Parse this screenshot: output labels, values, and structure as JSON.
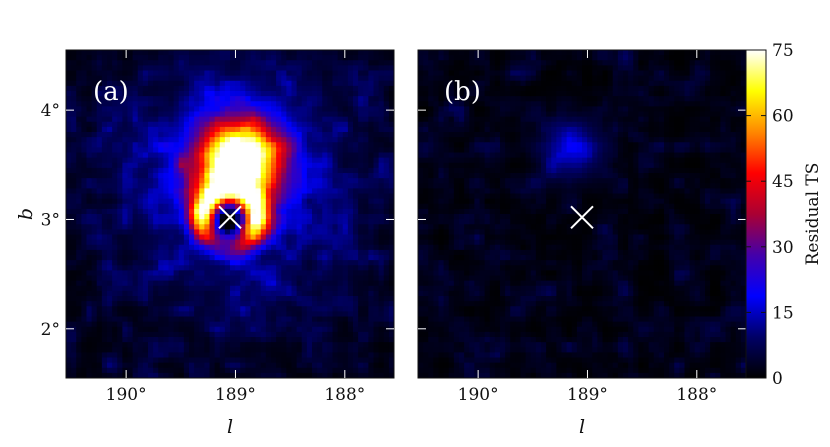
{
  "chart_data": [
    {
      "type": "heatmap",
      "panel_label": "(a)",
      "xlabel": "l",
      "ylabel": "b",
      "xlim": [
        190.55,
        187.55
      ],
      "ylim": [
        1.55,
        4.55
      ],
      "x_ticks": [
        190,
        189,
        188
      ],
      "x_tick_labels": [
        "190°",
        "189°",
        "188°"
      ],
      "y_ticks": [
        2,
        3,
        4
      ],
      "y_tick_labels": [
        "2°",
        "3°",
        "4°"
      ],
      "marker": {
        "symbol": "x",
        "l": 189.05,
        "b": 3.02,
        "color": "#ffffff"
      },
      "features": [
        {
          "kind": "peak",
          "l": 188.97,
          "b": 3.52,
          "peak_ts": 78,
          "extent_deg": 0.28
        },
        {
          "kind": "ring",
          "l": 189.05,
          "b": 3.02,
          "radius_deg": 0.25,
          "peak_ts": 45
        },
        {
          "kind": "halo",
          "l": 189.0,
          "b": 3.3,
          "peak_ts": 14,
          "extent_deg": 0.75
        }
      ]
    },
    {
      "type": "heatmap",
      "panel_label": "(b)",
      "xlabel": "l",
      "ylabel": "",
      "xlim": [
        190.55,
        187.55
      ],
      "ylim": [
        1.55,
        4.55
      ],
      "x_ticks": [
        190,
        189,
        188
      ],
      "x_tick_labels": [
        "190°",
        "189°",
        "188°"
      ],
      "y_ticks": [
        2,
        3,
        4
      ],
      "y_tick_labels": [],
      "marker": {
        "symbol": "x",
        "l": 189.05,
        "b": 3.02,
        "color": "#ffffff"
      },
      "features": [
        {
          "kind": "peak",
          "l": 189.15,
          "b": 3.65,
          "peak_ts": 16,
          "extent_deg": 0.18
        },
        {
          "kind": "background",
          "peak_ts": 6
        }
      ]
    }
  ],
  "colorbar": {
    "label": "Residual TS",
    "range": [
      0,
      75
    ],
    "ticks": [
      0,
      15,
      30,
      45,
      60,
      75
    ],
    "tick_labels": [
      "0",
      "15",
      "30",
      "45",
      "60",
      "75"
    ],
    "colormap": [
      "#000000",
      "#000066",
      "#0000ff",
      "#4400aa",
      "#aa0033",
      "#ff0000",
      "#ff8800",
      "#ffff00",
      "#ffffff"
    ]
  }
}
